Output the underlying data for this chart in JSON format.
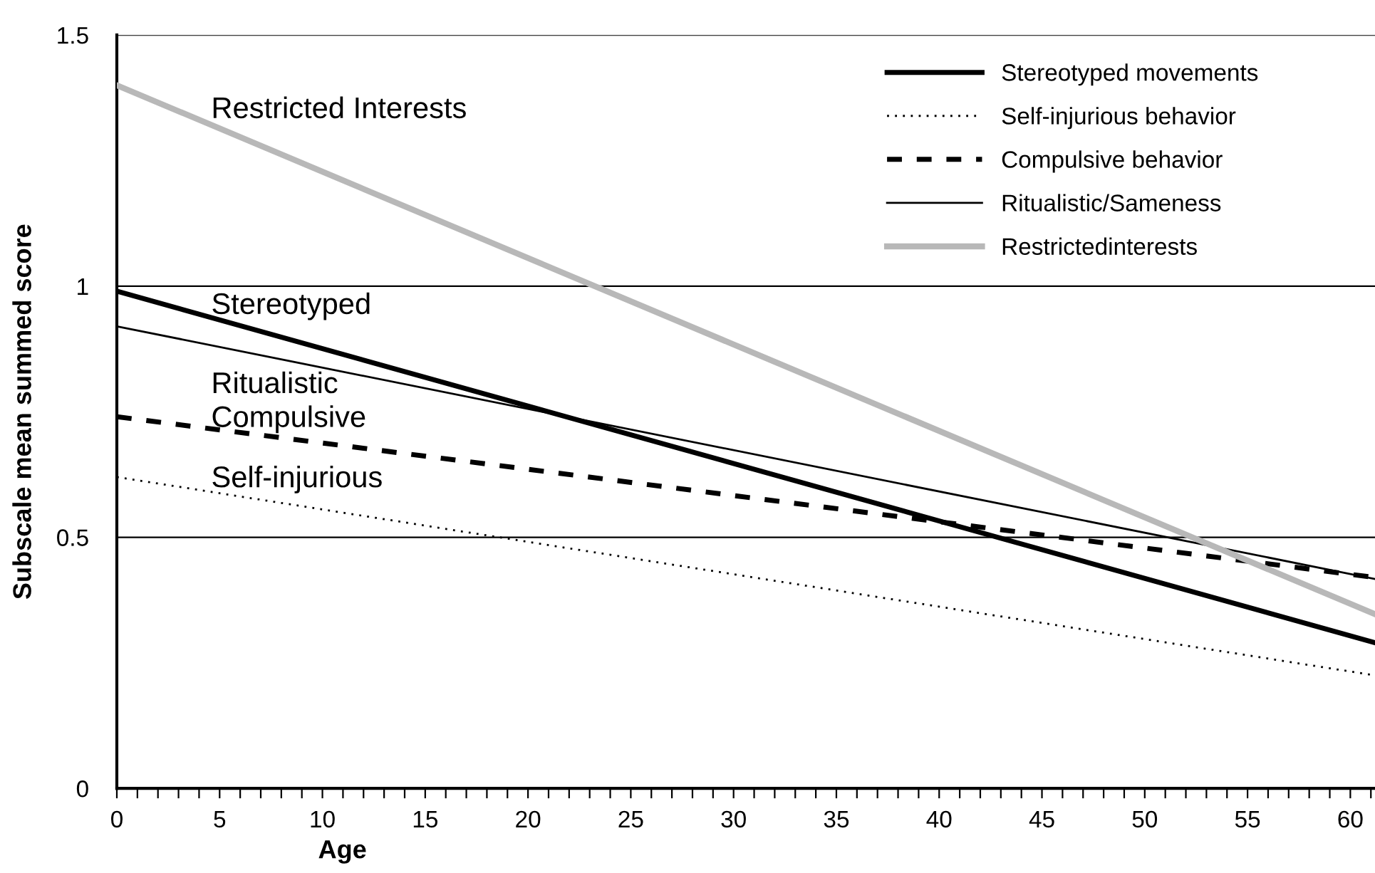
{
  "chart_data": {
    "type": "line",
    "xlabel": "Age",
    "ylabel": "Subscale mean summed score",
    "x": [
      0,
      61.2
    ],
    "series": [
      {
        "name": "Stereotyped movements",
        "color": "#000000",
        "values": [
          0.99,
          0.29
        ],
        "line_style": "solid"
      },
      {
        "name": "Self-injurious behavior",
        "color": "#000000",
        "values": [
          0.62,
          0.225
        ],
        "line_style": "dotted"
      },
      {
        "name": "Compulsive behavior",
        "color": "#000000",
        "values": [
          0.74,
          0.42
        ],
        "line_style": "dashed"
      },
      {
        "name": "Ritualistic/Sameness",
        "color": "#000000",
        "values": [
          0.92,
          0.417
        ],
        "line_style": "solid"
      },
      {
        "name": "Restrictedinterests",
        "color": "#b8b8b8",
        "values": [
          1.4,
          0.347
        ],
        "line_style": "solid"
      }
    ],
    "annotations": [
      "Restricted Interests",
      "Stereotyped",
      "Ritualistic",
      "Compulsive",
      "Self-injurious"
    ],
    "xlim": [
      0,
      61.2
    ],
    "xticks": [
      0,
      {
        "value": 1,
        "label": null
      },
      {
        "value": 2,
        "label": null
      },
      {
        "value": 3,
        "label": null
      },
      {
        "value": 4,
        "label": null
      },
      5,
      {
        "value": 6,
        "label": null
      },
      {
        "value": 7,
        "label": null
      },
      {
        "value": 8,
        "label": null
      },
      {
        "value": 9,
        "label": null
      },
      10,
      {
        "value": 11,
        "label": null
      },
      {
        "value": 12,
        "label": null
      },
      {
        "value": 13,
        "label": null
      },
      {
        "value": 14,
        "label": null
      },
      15,
      {
        "value": 16,
        "label": null
      },
      {
        "value": 17,
        "label": null
      },
      {
        "value": 18,
        "label": null
      },
      {
        "value": 19,
        "label": null
      },
      20,
      {
        "value": 21,
        "label": null
      },
      {
        "value": 22,
        "label": null
      },
      {
        "value": 23,
        "label": null
      },
      {
        "value": 24,
        "label": null
      },
      25,
      {
        "value": 26,
        "label": null
      },
      {
        "value": 27,
        "label": null
      },
      {
        "value": 28,
        "label": null
      },
      {
        "value": 29,
        "label": null
      },
      30,
      {
        "value": 31,
        "label": null
      },
      {
        "value": 32,
        "label": null
      },
      {
        "value": 33,
        "label": null
      },
      {
        "value": 34,
        "label": null
      },
      35,
      {
        "value": 36,
        "label": null
      },
      {
        "value": 37,
        "label": null
      },
      {
        "value": 38,
        "label": null
      },
      {
        "value": 39,
        "label": null
      },
      40,
      {
        "value": 41,
        "label": null
      },
      {
        "value": 42,
        "label": null
      },
      {
        "value": 43,
        "label": null
      },
      {
        "value": 44,
        "label": null
      },
      45,
      {
        "value": 46,
        "label": null
      },
      {
        "value": 47,
        "label": null
      },
      {
        "value": 48,
        "label": null
      },
      {
        "value": 49,
        "label": null
      },
      50,
      {
        "value": 51,
        "label": null
      },
      {
        "value": 52,
        "label": null
      },
      {
        "value": 53,
        "label": null
      },
      {
        "value": 54,
        "label": null
      },
      55,
      {
        "value": 56,
        "label": null
      },
      {
        "value": 57,
        "label": null
      },
      {
        "value": 58,
        "label": null
      },
      {
        "value": 59,
        "label": null
      },
      60,
      {
        "value": 61,
        "label": null
      }
    ],
    "ylim": [
      0,
      1.5
    ],
    "yticks": [
      0,
      0.5,
      1,
      1.5
    ],
    "grid": "y",
    "legend": "top right",
    "marker": "none"
  }
}
